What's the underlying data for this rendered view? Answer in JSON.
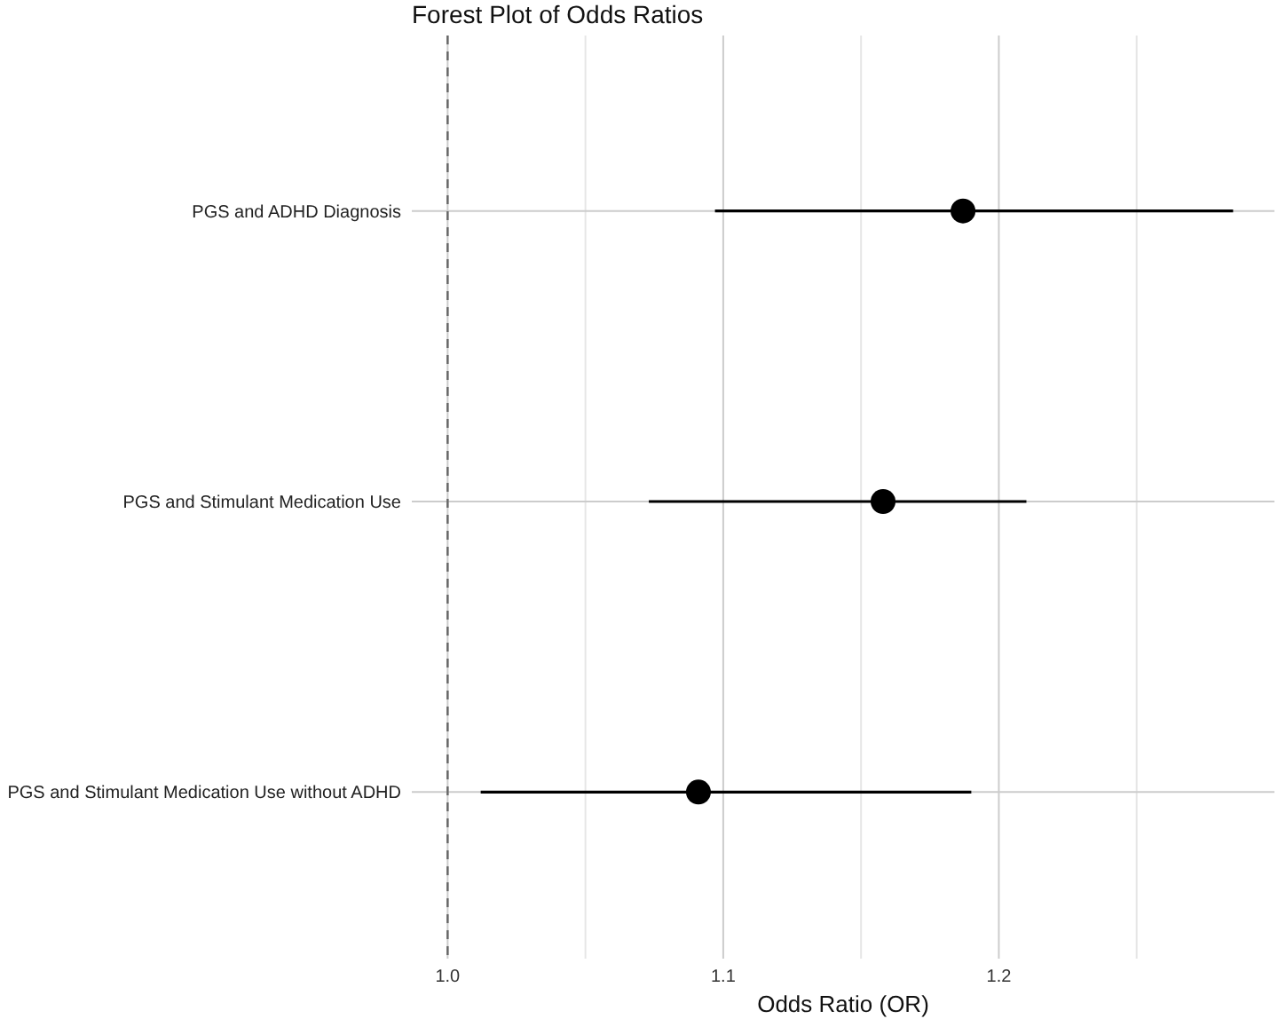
{
  "chart_data": {
    "type": "scatter",
    "title": "Forest Plot of Odds Ratios",
    "xlabel": "Odds Ratio (OR)",
    "orientation": "horizontal",
    "categories": [
      "PGS and ADHD Diagnosis",
      "PGS and Stimulant Medication Use",
      "PGS and Stimulant Medication Use without ADHD"
    ],
    "values": [
      1.187,
      1.158,
      1.091
    ],
    "errors": [
      [
        1.097,
        1.285
      ],
      [
        1.073,
        1.21
      ],
      [
        1.012,
        1.19
      ]
    ],
    "color": "#000000",
    "marker": "circle",
    "xlim": [
      0.987,
      1.3
    ],
    "xticks": [
      {
        "value": 1.0,
        "label": "1.0"
      },
      {
        "value": 1.05,
        "label": null
      },
      1.1,
      {
        "value": 1.15,
        "label": null
      },
      1.2,
      {
        "value": 1.25,
        "label": null
      }
    ],
    "grid": true,
    "ref_lines": [
      {
        "axis": "x",
        "value": 1.0,
        "color": "#666666",
        "line_style": "dashed"
      }
    ]
  }
}
